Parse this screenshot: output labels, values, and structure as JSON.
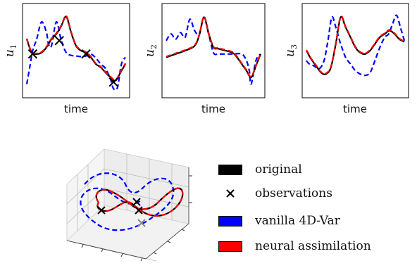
{
  "colors": {
    "original": "#000000",
    "observations": "#000000",
    "vanilla": "#0000ff",
    "neural": "#ff0000"
  },
  "chart_data": [
    {
      "type": "line",
      "xlabel": "time",
      "ylabel": "u1",
      "ylabel_main": "u",
      "ylabel_sub": "1",
      "grid": false,
      "series": [
        {
          "name": "original",
          "x": [
            0,
            0.05,
            0.1,
            0.15,
            0.2,
            0.25,
            0.3,
            0.35,
            0.4,
            0.45,
            0.5,
            0.55,
            0.6,
            0.65,
            0.7,
            0.75,
            0.8,
            0.85,
            0.9,
            0.95,
            1.0
          ],
          "values": [
            0.62,
            0.42,
            0.4,
            0.42,
            0.5,
            0.62,
            0.7,
            0.82,
            0.96,
            0.72,
            0.52,
            0.45,
            0.42,
            0.35,
            0.25,
            0.2,
            0.12,
            0.05,
            0.0,
            0.12,
            0.25
          ]
        },
        {
          "name": "vanilla 4D-Var",
          "x": [
            0,
            0.03,
            0.06,
            0.1,
            0.15,
            0.2,
            0.22,
            0.25,
            0.3,
            0.35,
            0.4,
            0.45,
            0.5,
            0.55,
            0.6,
            0.65,
            0.7,
            0.75,
            0.8,
            0.85,
            0.88,
            0.92,
            0.96,
            1.0
          ],
          "values": [
            -0.05,
            0.2,
            0.45,
            0.62,
            0.88,
            0.72,
            0.55,
            0.52,
            0.88,
            0.6,
            0.42,
            0.38,
            0.37,
            0.36,
            0.37,
            0.4,
            0.34,
            0.25,
            0.18,
            0.02,
            -0.12,
            -0.1,
            0.25,
            0.35
          ]
        },
        {
          "name": "neural assimilation",
          "x": [
            0,
            0.05,
            0.1,
            0.15,
            0.2,
            0.25,
            0.3,
            0.35,
            0.4,
            0.45,
            0.5,
            0.55,
            0.6,
            0.65,
            0.7,
            0.75,
            0.8,
            0.85,
            0.9,
            0.95,
            1.0
          ],
          "values": [
            0.63,
            0.43,
            0.41,
            0.43,
            0.51,
            0.63,
            0.71,
            0.83,
            0.97,
            0.73,
            0.53,
            0.46,
            0.43,
            0.36,
            0.26,
            0.21,
            0.13,
            0.06,
            0.01,
            0.13,
            0.26
          ]
        },
        {
          "name": "observations",
          "x": [
            0.06,
            0.33,
            0.6,
            0.88
          ],
          "values": [
            0.4,
            0.6,
            0.4,
            -0.02
          ]
        }
      ]
    },
    {
      "type": "line",
      "xlabel": "time",
      "ylabel": "u2",
      "ylabel_main": "u",
      "ylabel_sub": "2",
      "grid": false,
      "series": [
        {
          "name": "original",
          "x": [
            0,
            0.1,
            0.2,
            0.3,
            0.35,
            0.4,
            0.45,
            0.5,
            0.55,
            0.6,
            0.7,
            0.75,
            0.8,
            0.85,
            0.9,
            0.95,
            1.0
          ],
          "values": [
            0.35,
            0.4,
            0.45,
            0.52,
            0.68,
            0.95,
            0.7,
            0.5,
            0.48,
            0.46,
            0.42,
            0.35,
            0.25,
            0.15,
            0.05,
            0.22,
            0.4
          ]
        },
        {
          "name": "vanilla 4D-Var",
          "x": [
            0,
            0.05,
            0.1,
            0.15,
            0.2,
            0.25,
            0.3,
            0.35,
            0.4,
            0.45,
            0.5,
            0.55,
            0.6,
            0.7,
            0.8,
            0.85,
            0.88,
            0.9,
            0.95,
            1.0
          ],
          "values": [
            0.6,
            0.7,
            0.62,
            0.72,
            0.65,
            0.92,
            0.75,
            0.7,
            0.95,
            0.7,
            0.42,
            0.4,
            0.4,
            0.4,
            0.4,
            0.3,
            0.15,
            -0.05,
            0.3,
            0.4
          ]
        },
        {
          "name": "neural assimilation",
          "x": [
            0,
            0.1,
            0.2,
            0.3,
            0.35,
            0.4,
            0.45,
            0.5,
            0.55,
            0.6,
            0.7,
            0.75,
            0.8,
            0.85,
            0.9,
            0.95,
            1.0
          ],
          "values": [
            0.36,
            0.41,
            0.46,
            0.53,
            0.69,
            0.96,
            0.71,
            0.51,
            0.49,
            0.47,
            0.43,
            0.36,
            0.26,
            0.16,
            0.06,
            0.23,
            0.41
          ]
        }
      ]
    },
    {
      "type": "line",
      "xlabel": "time",
      "ylabel": "u3",
      "ylabel_main": "u",
      "ylabel_sub": "3",
      "grid": false,
      "series": [
        {
          "name": "original",
          "x": [
            0,
            0.05,
            0.1,
            0.15,
            0.2,
            0.25,
            0.3,
            0.35,
            0.4,
            0.45,
            0.5,
            0.55,
            0.6,
            0.65,
            0.7,
            0.75,
            0.8,
            0.85,
            0.9,
            0.95,
            1.0
          ],
          "values": [
            0.45,
            0.32,
            0.22,
            0.12,
            0.1,
            0.2,
            0.55,
            0.95,
            0.8,
            0.65,
            0.5,
            0.42,
            0.4,
            0.45,
            0.55,
            0.65,
            0.7,
            0.75,
            0.7,
            0.62,
            0.58
          ]
        },
        {
          "name": "vanilla 4D-Var",
          "x": [
            0,
            0.03,
            0.08,
            0.13,
            0.18,
            0.22,
            0.26,
            0.3,
            0.35,
            0.4,
            0.45,
            0.5,
            0.55,
            0.6,
            0.65,
            0.7,
            0.75,
            0.8,
            0.84,
            0.88,
            0.92,
            0.96,
            1.0
          ],
          "values": [
            0.3,
            0.25,
            0.22,
            0.18,
            0.3,
            0.6,
            0.95,
            0.8,
            0.55,
            0.35,
            0.25,
            0.15,
            0.1,
            0.08,
            0.12,
            0.3,
            0.5,
            0.65,
            0.7,
            0.85,
            0.98,
            0.8,
            0.6
          ]
        },
        {
          "name": "neural assimilation",
          "x": [
            0,
            0.05,
            0.1,
            0.15,
            0.2,
            0.25,
            0.3,
            0.35,
            0.4,
            0.45,
            0.5,
            0.55,
            0.6,
            0.65,
            0.7,
            0.75,
            0.8,
            0.85,
            0.9,
            0.95,
            1.0
          ],
          "values": [
            0.46,
            0.33,
            0.23,
            0.13,
            0.11,
            0.21,
            0.56,
            0.96,
            0.81,
            0.66,
            0.51,
            0.43,
            0.41,
            0.46,
            0.56,
            0.66,
            0.71,
            0.76,
            0.71,
            0.63,
            0.59
          ]
        }
      ]
    }
  ],
  "legend": {
    "items": [
      {
        "label": "original",
        "kind": "swatch",
        "color": "#000000"
      },
      {
        "label": "observations",
        "kind": "marker",
        "color": "#000000"
      },
      {
        "label": "vanilla 4D-Var",
        "kind": "swatch",
        "color": "#0000ff"
      },
      {
        "label": "neural assimilation",
        "kind": "swatch",
        "color": "#ff0000"
      }
    ]
  }
}
